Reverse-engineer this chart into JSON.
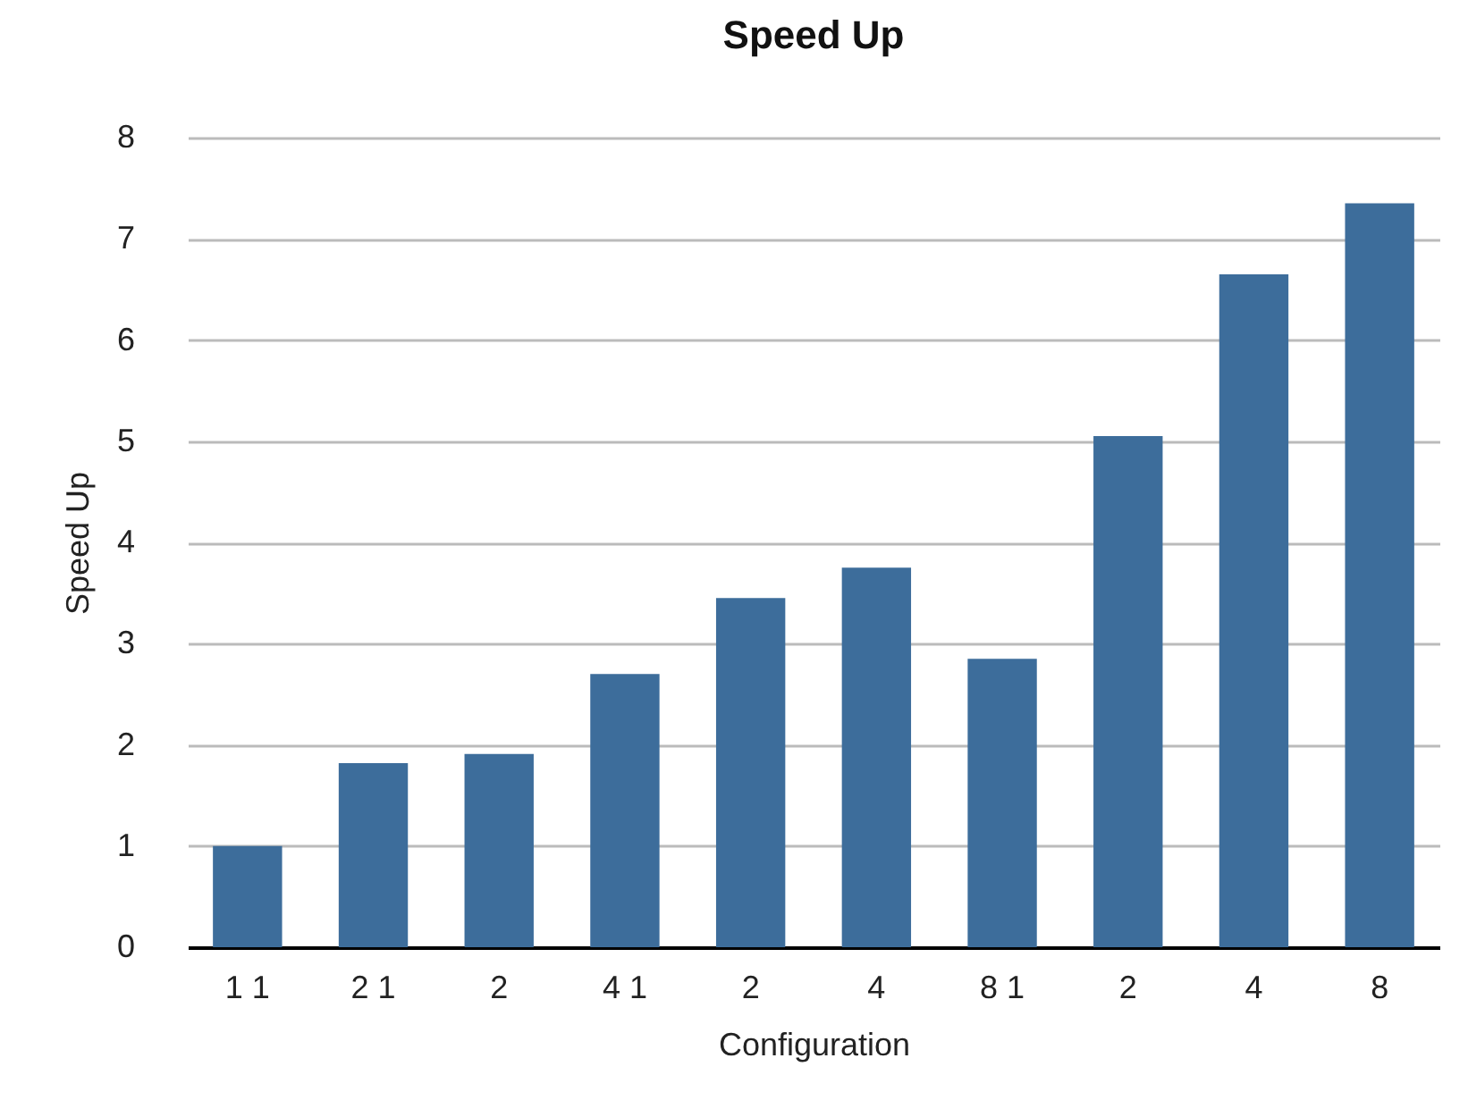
{
  "chart_data": {
    "type": "bar",
    "title": "Speed Up",
    "xlabel": "Configuration",
    "ylabel": "Speed Up",
    "categories": [
      "1 1",
      "2 1",
      "2",
      "4 1",
      "2",
      "4",
      "8 1",
      "2",
      "4",
      "8"
    ],
    "values": [
      1.0,
      1.82,
      1.91,
      2.7,
      3.45,
      3.75,
      2.85,
      5.05,
      6.65,
      7.35
    ],
    "color": "#3d6d9b",
    "ylim": [
      0,
      8
    ],
    "yticks": [
      0,
      1,
      2,
      3,
      4,
      5,
      6,
      7,
      8
    ],
    "grid": "y"
  }
}
